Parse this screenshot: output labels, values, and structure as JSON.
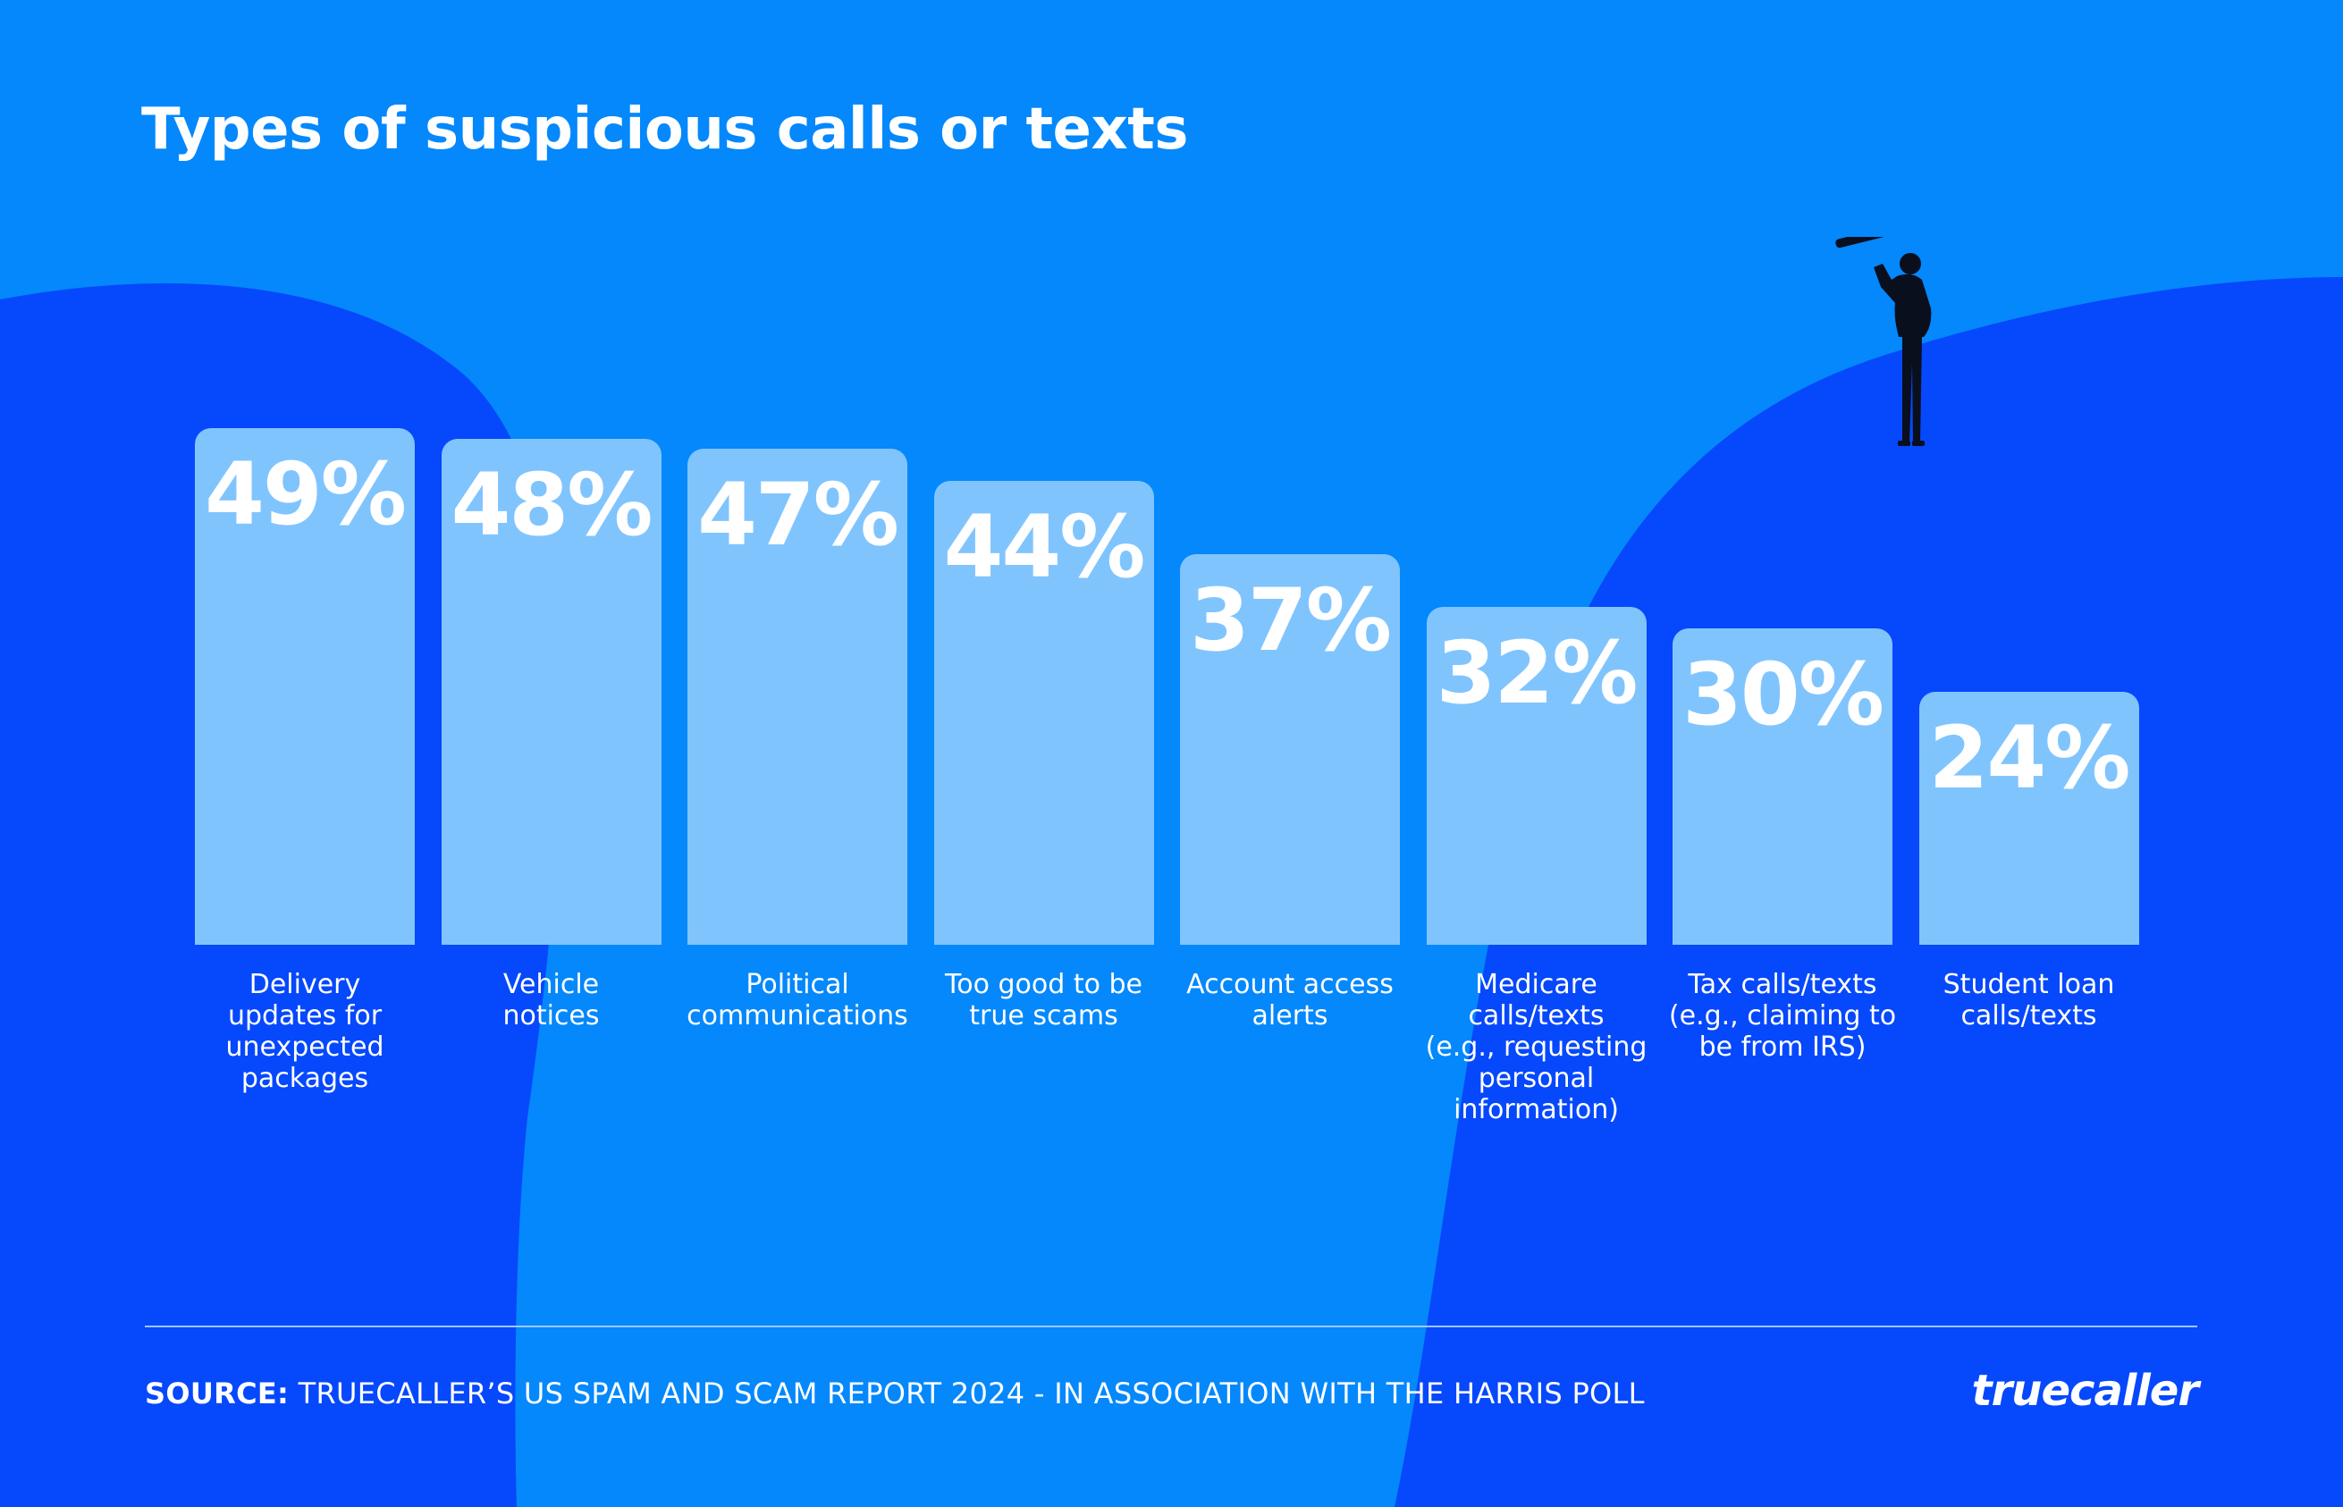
{
  "chart_data": {
    "type": "bar",
    "title": "Types of suspicious calls or texts",
    "categories": [
      "Delivery updates for unexpected packages",
      "Vehicle notices",
      "Political communications",
      "Too good to be true scams",
      "Account access alerts",
      "Medicare calls/texts (e.g., requesting personal information)",
      "Tax calls/texts (e.g., claiming to be from IRS)",
      "Student loan calls/texts"
    ],
    "category_lines": [
      [
        "Delivery",
        "updates for",
        "unexpected",
        "packages"
      ],
      [
        "Vehicle",
        "notices"
      ],
      [
        "Political",
        "communications"
      ],
      [
        "Too good to be",
        "true scams"
      ],
      [
        "Account access",
        "alerts"
      ],
      [
        "Medicare",
        "calls/texts",
        "(e.g., requesting",
        "personal",
        "information)"
      ],
      [
        "Tax calls/texts",
        "(e.g., claiming to",
        "be from IRS)"
      ],
      [
        "Student loan",
        "calls/texts"
      ]
    ],
    "values": [
      49,
      48,
      47,
      44,
      37,
      32,
      30,
      24
    ],
    "value_labels": [
      "49%",
      "48%",
      "47%",
      "44%",
      "37%",
      "32%",
      "30%",
      "24%"
    ],
    "unit": "%",
    "xlabel": "",
    "ylabel": "",
    "grid": false,
    "legend": "none",
    "colors": {
      "bar": "#80c4fe",
      "background": "#0488fc",
      "hill": "#0648fc",
      "text": "#ffffff"
    }
  },
  "footer": {
    "source_label": "SOURCE:",
    "source_text": "TRUECALLER’S US SPAM AND SCAM REPORT 2024 - IN ASSOCIATION WITH THE HARRIS POLL",
    "brand": "truecaller"
  },
  "icons": {
    "figure": "man-with-telescope-icon"
  }
}
